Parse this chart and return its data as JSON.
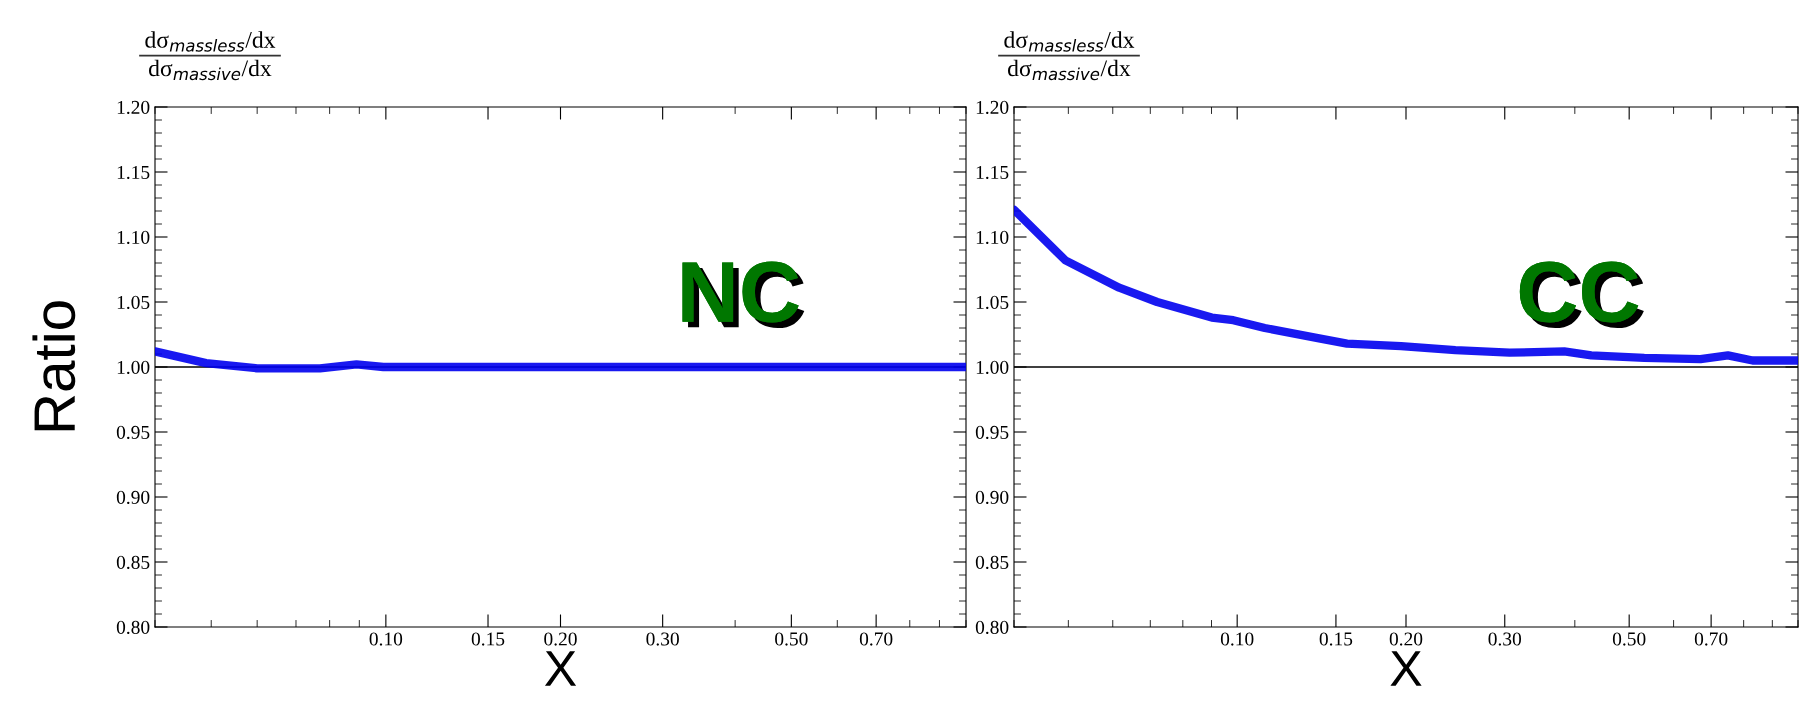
{
  "chart_data": [
    {
      "type": "line",
      "title": "dσ$_{massless}$/dx",
      "subtitle": "dσ$_{massive}$/dx",
      "xlabel": "X",
      "ylabel": "Ratio",
      "annotations": [
        "NC"
      ],
      "log": "x",
      "grid": false,
      "line_style": "solid",
      "marker": "none",
      "xlim": [
        0.04,
        1.0
      ],
      "xticks": [
        {
          "value": 0.1,
          "label": "0.10"
        },
        {
          "value": 0.15,
          "label": "0.15"
        },
        {
          "value": 0.2,
          "label": "0.20"
        },
        {
          "value": 0.3,
          "label": "0.30"
        },
        {
          "value": 0.5,
          "label": "0.50"
        },
        {
          "value": 0.7,
          "label": "0.70"
        }
      ],
      "ylim": [
        0.8,
        1.2
      ],
      "yticks": [
        {
          "value": 0.8,
          "label": "0.80"
        },
        {
          "value": 0.85,
          "label": "0.85"
        },
        {
          "value": 0.9,
          "label": "0.90"
        },
        {
          "value": 0.95,
          "label": "0.95"
        },
        {
          "value": 1.0,
          "label": "1.00"
        },
        {
          "value": 1.05,
          "label": "1.05"
        },
        {
          "value": 1.1,
          "label": "1.10"
        },
        {
          "value": 1.15,
          "label": "1.15"
        },
        {
          "value": 1.2,
          "label": "1.20"
        }
      ],
      "ref_lines": [
        {
          "axis": "y",
          "value": 1.0,
          "color": "#000000"
        }
      ],
      "series": [
        {
          "color": "#0000ee",
          "x": [
            0.04,
            0.049,
            0.06,
            0.077,
            0.089,
            0.099,
            0.121,
            0.2,
            0.3,
            0.5,
            0.7,
            1.0
          ],
          "values": [
            1.012,
            1.003,
            0.999,
            0.999,
            1.002,
            1.0,
            1.0,
            1.0,
            1.0,
            1.0,
            1.0,
            1.0
          ]
        }
      ]
    },
    {
      "type": "line",
      "title": "dσ$_{massless}$/dx",
      "subtitle": "dσ$_{massive}$/dx",
      "xlabel": "X",
      "annotations": [
        "CC"
      ],
      "log": "x",
      "grid": false,
      "line_style": "solid",
      "marker": "none",
      "xlim": [
        0.04,
        1.0
      ],
      "xticks": [
        {
          "value": 0.1,
          "label": "0.10"
        },
        {
          "value": 0.15,
          "label": "0.15"
        },
        {
          "value": 0.2,
          "label": "0.20"
        },
        {
          "value": 0.3,
          "label": "0.30"
        },
        {
          "value": 0.5,
          "label": "0.50"
        },
        {
          "value": 0.7,
          "label": "0.70"
        }
      ],
      "ylim": [
        0.8,
        1.2
      ],
      "yticks": [
        {
          "value": 0.8,
          "label": "0.80"
        },
        {
          "value": 0.85,
          "label": "0.85"
        },
        {
          "value": 0.9,
          "label": "0.90"
        },
        {
          "value": 0.95,
          "label": "0.95"
        },
        {
          "value": 1.0,
          "label": "1.00"
        },
        {
          "value": 1.05,
          "label": "1.05"
        },
        {
          "value": 1.1,
          "label": "1.10"
        },
        {
          "value": 1.15,
          "label": "1.15"
        },
        {
          "value": 1.2,
          "label": "1.20"
        }
      ],
      "ref_lines": [
        {
          "axis": "y",
          "value": 1.0,
          "color": "#000000"
        }
      ],
      "series": [
        {
          "color": "#0000ee",
          "x": [
            0.04,
            0.0494,
            0.0616,
            0.072,
            0.0901,
            0.0984,
            0.112,
            0.14,
            0.157,
            0.196,
            0.245,
            0.306,
            0.383,
            0.428,
            0.532,
            0.67,
            0.75,
            0.83,
            1.0
          ],
          "values": [
            1.121,
            1.082,
            1.061,
            1.05,
            1.038,
            1.036,
            1.03,
            1.022,
            1.018,
            1.016,
            1.013,
            1.011,
            1.012,
            1.009,
            1.007,
            1.006,
            1.009,
            1.005,
            1.005
          ]
        }
      ]
    }
  ]
}
